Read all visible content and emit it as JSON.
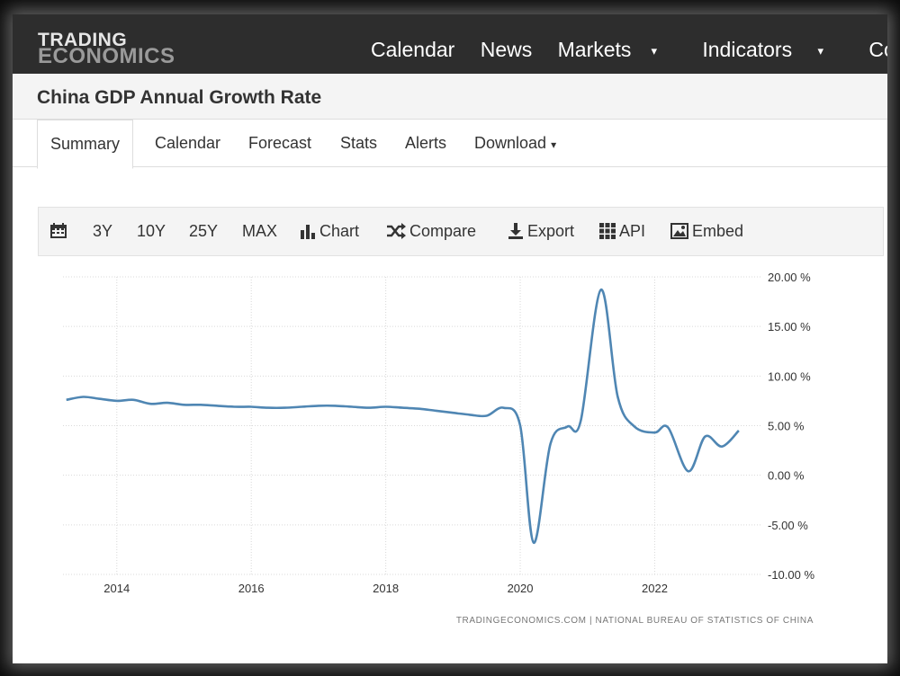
{
  "header": {
    "logo_line1": "TRADING",
    "logo_line2": "ECONOMICS",
    "nav": [
      {
        "label": "Calendar",
        "dropdown": false
      },
      {
        "label": "News",
        "dropdown": false
      },
      {
        "label": "Markets",
        "dropdown": true
      },
      {
        "label": "Indicators",
        "dropdown": true
      },
      {
        "label": "Countries",
        "dropdown": false
      }
    ]
  },
  "page": {
    "title": "China GDP Annual Growth Rate"
  },
  "tabs": [
    "Summary",
    "Calendar",
    "Forecast",
    "Stats",
    "Alerts",
    "Download"
  ],
  "toolbar": {
    "range_3y": "3Y",
    "range_10y": "10Y",
    "range_25y": "25Y",
    "range_max": "MAX",
    "chart": "Chart",
    "compare": "Compare",
    "export": "Export",
    "api": "API",
    "embed": "Embed"
  },
  "source": "TRADINGECONOMICS.COM  |  NATIONAL BUREAU OF STATISTICS OF CHINA",
  "colors": {
    "line": "#4f86b3",
    "nav_bg": "#2d2d2d"
  },
  "chart_data": {
    "type": "line",
    "x_ticks": [
      "2014",
      "2016",
      "2018",
      "2020",
      "2022"
    ],
    "y_ticks": [
      "20.00 %",
      "15.00 %",
      "10.00 %",
      "5.00 %",
      "0.00 %",
      "-5.00 %",
      "-10.00 %"
    ],
    "ylim": [
      -10,
      20
    ],
    "xlim": [
      2013.2,
      2023.6
    ],
    "grid": true,
    "series": [
      {
        "points": [
          [
            2013.25,
            7.6
          ],
          [
            2013.5,
            7.9
          ],
          [
            2013.75,
            7.7
          ],
          [
            2014.0,
            7.5
          ],
          [
            2014.25,
            7.6
          ],
          [
            2014.5,
            7.2
          ],
          [
            2014.75,
            7.3
          ],
          [
            2015.0,
            7.1
          ],
          [
            2015.25,
            7.1
          ],
          [
            2015.5,
            7.0
          ],
          [
            2015.75,
            6.9
          ],
          [
            2016.0,
            6.9
          ],
          [
            2016.25,
            6.8
          ],
          [
            2016.5,
            6.8
          ],
          [
            2016.75,
            6.9
          ],
          [
            2017.0,
            7.0
          ],
          [
            2017.25,
            7.0
          ],
          [
            2017.5,
            6.9
          ],
          [
            2017.75,
            6.8
          ],
          [
            2018.0,
            6.9
          ],
          [
            2018.25,
            6.8
          ],
          [
            2018.5,
            6.7
          ],
          [
            2018.75,
            6.5
          ],
          [
            2019.0,
            6.3
          ],
          [
            2019.25,
            6.1
          ],
          [
            2019.5,
            6.0
          ],
          [
            2019.75,
            6.8
          ],
          [
            2020.0,
            5.0
          ],
          [
            2020.2,
            -6.8
          ],
          [
            2020.45,
            3.2
          ],
          [
            2020.7,
            4.9
          ],
          [
            2020.9,
            5.5
          ],
          [
            2021.2,
            18.7
          ],
          [
            2021.45,
            7.9
          ],
          [
            2021.7,
            4.9
          ],
          [
            2022.0,
            4.3
          ],
          [
            2022.2,
            4.8
          ],
          [
            2022.5,
            0.4
          ],
          [
            2022.75,
            3.9
          ],
          [
            2023.0,
            2.9
          ],
          [
            2023.25,
            4.5
          ]
        ]
      }
    ]
  }
}
